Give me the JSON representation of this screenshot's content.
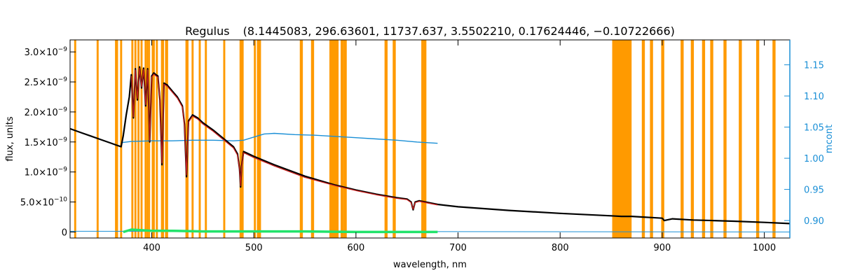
{
  "chart_data": {
    "type": "line",
    "title": "Regulus",
    "subtitle": "(8.1445083, 296.63601, 11737.637, 3.5502210, 0.17624446, −0.10722666)",
    "xlabel": "wavelength, nm",
    "ylabel": "flux, units",
    "y2label": "mcont",
    "xlim": [
      320,
      1025
    ],
    "ylim": [
      -1e-10,
      3.2e-09
    ],
    "y2lim": [
      0.872,
      1.19
    ],
    "x_ticks": [
      400,
      500,
      600,
      700,
      800,
      900,
      1000
    ],
    "x_tick_labels": [
      "400",
      "500",
      "600",
      "700",
      "800",
      "900",
      "1000"
    ],
    "y_ticks": [
      0,
      5e-10,
      1e-09,
      1.5e-09,
      2e-09,
      2.5e-09,
      3e-09
    ],
    "y_tick_labels": [
      {
        "mant": "0",
        "exp": ""
      },
      {
        "mant": "5.0×10",
        "exp": "−10"
      },
      {
        "mant": "1.0×10",
        "exp": "−9"
      },
      {
        "mant": "1.5×10",
        "exp": "−9"
      },
      {
        "mant": "2.0×10",
        "exp": "−9"
      },
      {
        "mant": "2.5×10",
        "exp": "−9"
      },
      {
        "mant": "3.0×10",
        "exp": "−9"
      }
    ],
    "y2_ticks": [
      0.9,
      0.95,
      1.0,
      1.05,
      1.1,
      1.15
    ],
    "y2_tick_labels": [
      "0.90",
      "0.95",
      "1.00",
      "1.05",
      "1.10",
      "1.15"
    ],
    "mask_bands": [
      [
        324,
        326
      ],
      [
        346,
        348
      ],
      [
        364,
        367
      ],
      [
        369,
        371
      ],
      [
        380,
        382
      ],
      [
        383,
        385
      ],
      [
        386,
        388
      ],
      [
        389,
        391
      ],
      [
        393,
        395
      ],
      [
        395,
        397
      ],
      [
        397,
        398
      ],
      [
        400,
        403
      ],
      [
        404,
        406
      ],
      [
        409,
        412
      ],
      [
        413,
        414
      ],
      [
        414,
        416
      ],
      [
        433,
        436
      ],
      [
        439,
        441
      ],
      [
        446,
        448
      ],
      [
        452,
        454
      ],
      [
        470,
        472
      ],
      [
        486,
        490
      ],
      [
        500,
        502
      ],
      [
        503,
        507
      ],
      [
        545,
        548
      ],
      [
        556,
        559
      ],
      [
        574,
        583
      ],
      [
        585,
        588
      ],
      [
        588,
        591
      ],
      [
        628,
        631
      ],
      [
        636,
        639
      ],
      [
        664,
        666
      ],
      [
        666,
        669
      ],
      [
        851,
        870
      ],
      [
        880,
        883
      ],
      [
        888,
        891
      ],
      [
        899,
        902
      ],
      [
        918,
        921
      ],
      [
        928,
        931
      ],
      [
        939,
        942
      ],
      [
        947,
        950
      ],
      [
        960,
        963
      ],
      [
        975,
        978
      ],
      [
        992,
        995
      ],
      [
        1008,
        1011
      ]
    ],
    "colors": {
      "mask": "#ff9a00",
      "observed": "#000000",
      "model": "#c8201e",
      "mcont": "#1a8fd6",
      "residual": "#22e36b",
      "axis": "#000000",
      "right_axis": "#1a8fd6"
    },
    "series": [
      {
        "key": "observed",
        "x": [
          320,
          330,
          340,
          350,
          360,
          365,
          370,
          372,
          375,
          378,
          380,
          382,
          384,
          386,
          388,
          390,
          392,
          394,
          396,
          398,
          400,
          402,
          404,
          406,
          408,
          410,
          412,
          415,
          420,
          425,
          430,
          432,
          434,
          436,
          440,
          445,
          450,
          460,
          470,
          480,
          484,
          486,
          487,
          488,
          490,
          495,
          500,
          520,
          550,
          580,
          600,
          620,
          640,
          650,
          654,
          656,
          658,
          662,
          680,
          700,
          750,
          800,
          850,
          860,
          870,
          880,
          890,
          900,
          902,
          910,
          930,
          950,
          970,
          1000,
          1025
        ],
        "y": [
          1.72e-09,
          1.66e-09,
          1.6e-09,
          1.54e-09,
          1.48e-09,
          1.45e-09,
          1.42e-09,
          1.6e-09,
          1.95e-09,
          2.25e-09,
          2.62e-09,
          1.9e-09,
          2.72e-09,
          2.2e-09,
          2.75e-09,
          2.4e-09,
          2.73e-09,
          2.1e-09,
          2.72e-09,
          1.5e-09,
          2.6e-09,
          2.65e-09,
          2.62e-09,
          2.6e-09,
          2.2e-09,
          1.12e-09,
          2.48e-09,
          2.45e-09,
          2.35e-09,
          2.25e-09,
          2.1e-09,
          1.8e-09,
          9.2e-10,
          1.85e-09,
          1.95e-09,
          1.9e-09,
          1.82e-09,
          1.7e-09,
          1.56e-09,
          1.42e-09,
          1.3e-09,
          1.05e-09,
          7.5e-10,
          1.1e-09,
          1.34e-09,
          1.3e-09,
          1.26e-09,
          1.12e-09,
          9.3e-10,
          7.8e-10,
          7e-10,
          6.3e-10,
          5.7e-10,
          5.5e-10,
          5e-10,
          3.7e-10,
          5e-10,
          5.2e-10,
          4.6e-10,
          4.2e-10,
          3.6e-10,
          3.1e-10,
          2.7e-10,
          2.6e-10,
          2.6e-10,
          2.5e-10,
          2.4e-10,
          2.3e-10,
          1.9e-10,
          2.2e-10,
          2e-10,
          1.9e-10,
          1.8e-10,
          1.6e-10,
          1.4e-10
        ]
      },
      {
        "key": "model",
        "x": [
          380,
          382,
          384,
          386,
          388,
          390,
          392,
          394,
          396,
          398,
          400,
          402,
          404,
          406,
          408,
          410,
          412,
          415,
          420,
          425,
          430,
          432,
          434,
          436,
          440,
          445,
          450,
          460,
          470,
          480,
          484,
          486,
          487,
          488,
          490,
          495,
          500,
          520,
          550,
          580,
          600,
          620,
          640,
          650,
          654,
          656,
          658,
          662,
          680
        ],
        "y": [
          2.6e-09,
          1.92e-09,
          2.7e-09,
          2.22e-09,
          2.73e-09,
          2.42e-09,
          2.71e-09,
          2.12e-09,
          2.7e-09,
          1.52e-09,
          2.58e-09,
          2.63e-09,
          2.6e-09,
          2.58e-09,
          2.22e-09,
          1.15e-09,
          2.46e-09,
          2.43e-09,
          2.33e-09,
          2.23e-09,
          2.08e-09,
          1.78e-09,
          9.5e-10,
          1.83e-09,
          1.93e-09,
          1.88e-09,
          1.8e-09,
          1.68e-09,
          1.54e-09,
          1.4e-09,
          1.28e-09,
          1.04e-09,
          7.7e-10,
          1.09e-09,
          1.32e-09,
          1.28e-09,
          1.24e-09,
          1.1e-09,
          9.1e-10,
          7.7e-10,
          6.9e-10,
          6.2e-10,
          5.6e-10,
          5.4e-10,
          4.9e-10,
          3.8e-10,
          4.9e-10,
          5.1e-10,
          4.5e-10
        ]
      },
      {
        "key": "mcont",
        "axis": "right",
        "x": [
          370,
          380,
          400,
          420,
          440,
          460,
          480,
          490,
          500,
          510,
          520,
          540,
          560,
          580,
          600,
          620,
          640,
          660,
          680
        ],
        "y": [
          1.025,
          1.027,
          1.028,
          1.028,
          1.029,
          1.029,
          1.028,
          1.029,
          1.034,
          1.039,
          1.04,
          1.038,
          1.037,
          1.035,
          1.033,
          1.031,
          1.029,
          1.026,
          1.024
        ]
      },
      {
        "key": "residual",
        "x": [
          372,
          380,
          390,
          400,
          420,
          450,
          500,
          550,
          600,
          650,
          680
        ],
        "y": [
          0,
          4e-11,
          3e-11,
          2e-11,
          2e-11,
          1e-11,
          1e-11,
          1e-11,
          0.0,
          0.0,
          0.0
        ]
      },
      {
        "key": "baseline",
        "x": [
          320,
          1025
        ],
        "y": [
          1.2e-11,
          0.0
        ]
      }
    ]
  }
}
